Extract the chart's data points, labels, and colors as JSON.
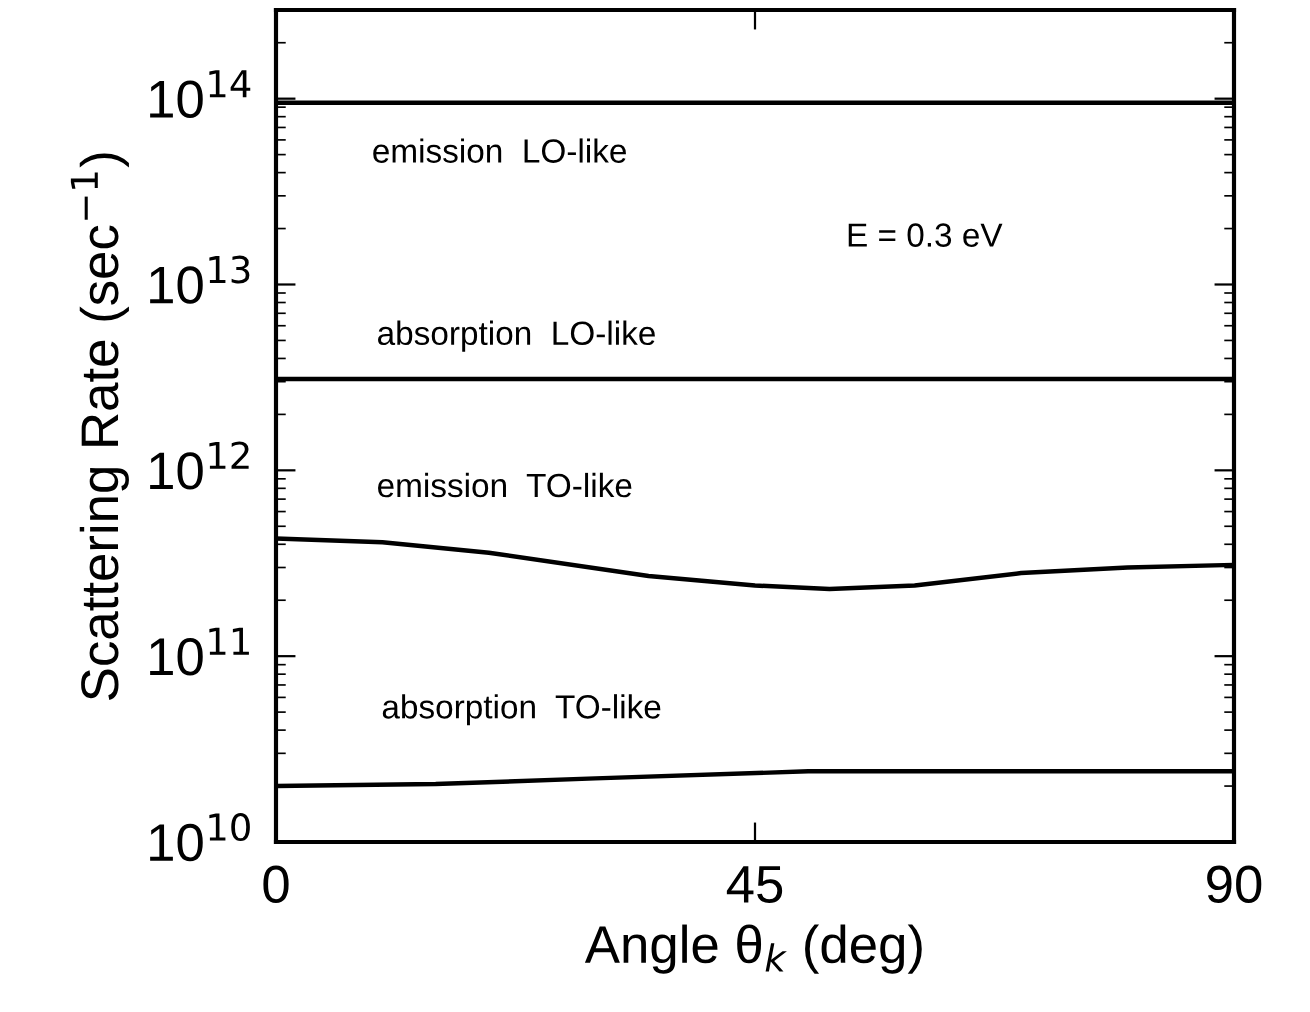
{
  "chart_data": {
    "type": "line",
    "xlabel": "Angle θ$_{k}$ (deg)",
    "ylabel": "Scattering Rate (sec$^{−1}$)",
    "log": "y",
    "xlim": [
      0,
      90
    ],
    "ylim": [
      10000000000.0,
      300000000000000.0
    ],
    "xticks": [
      0,
      45,
      90
    ],
    "yticks": [
      {
        "value": 10000000000.0,
        "label": "10$^{10}$"
      },
      {
        "value": 100000000000.0,
        "label": "10$^{11}$"
      },
      {
        "value": 1000000000000.0,
        "label": "10$^{12}$"
      },
      {
        "value": 10000000000000.0,
        "label": "10$^{13}$"
      },
      {
        "value": 100000000000000.0,
        "label": "10$^{14}$"
      }
    ],
    "grid": false,
    "legend": false,
    "marker": "none",
    "line_style": "solid",
    "series": [
      {
        "color": "#000000",
        "x": [
          0,
          90
        ],
        "values": [
          95000000000000.0,
          95000000000000.0
        ]
      },
      {
        "color": "#000000",
        "x": [
          0,
          90
        ],
        "values": [
          3100000000000.0,
          3100000000000.0
        ]
      },
      {
        "color": "#000000",
        "x": [
          0,
          10,
          20,
          35,
          45,
          52,
          60,
          70,
          80,
          90
        ],
        "values": [
          430000000000.0,
          410000000000.0,
          360000000000.0,
          270000000000.0,
          240000000000.0,
          230000000000.0,
          240000000000.0,
          280000000000.0,
          300000000000.0,
          310000000000.0
        ]
      },
      {
        "color": "#000000",
        "x": [
          0,
          15,
          30,
          50,
          70,
          90
        ],
        "values": [
          20000000000.0,
          20500000000.0,
          22000000000.0,
          24000000000.0,
          24000000000.0,
          24000000000.0
        ]
      }
    ],
    "annotations": [
      "emission  LO-like",
      "absorption  LO-like",
      "emission  TO-like",
      "absorption  TO-like",
      "E = 0.3 eV"
    ]
  }
}
